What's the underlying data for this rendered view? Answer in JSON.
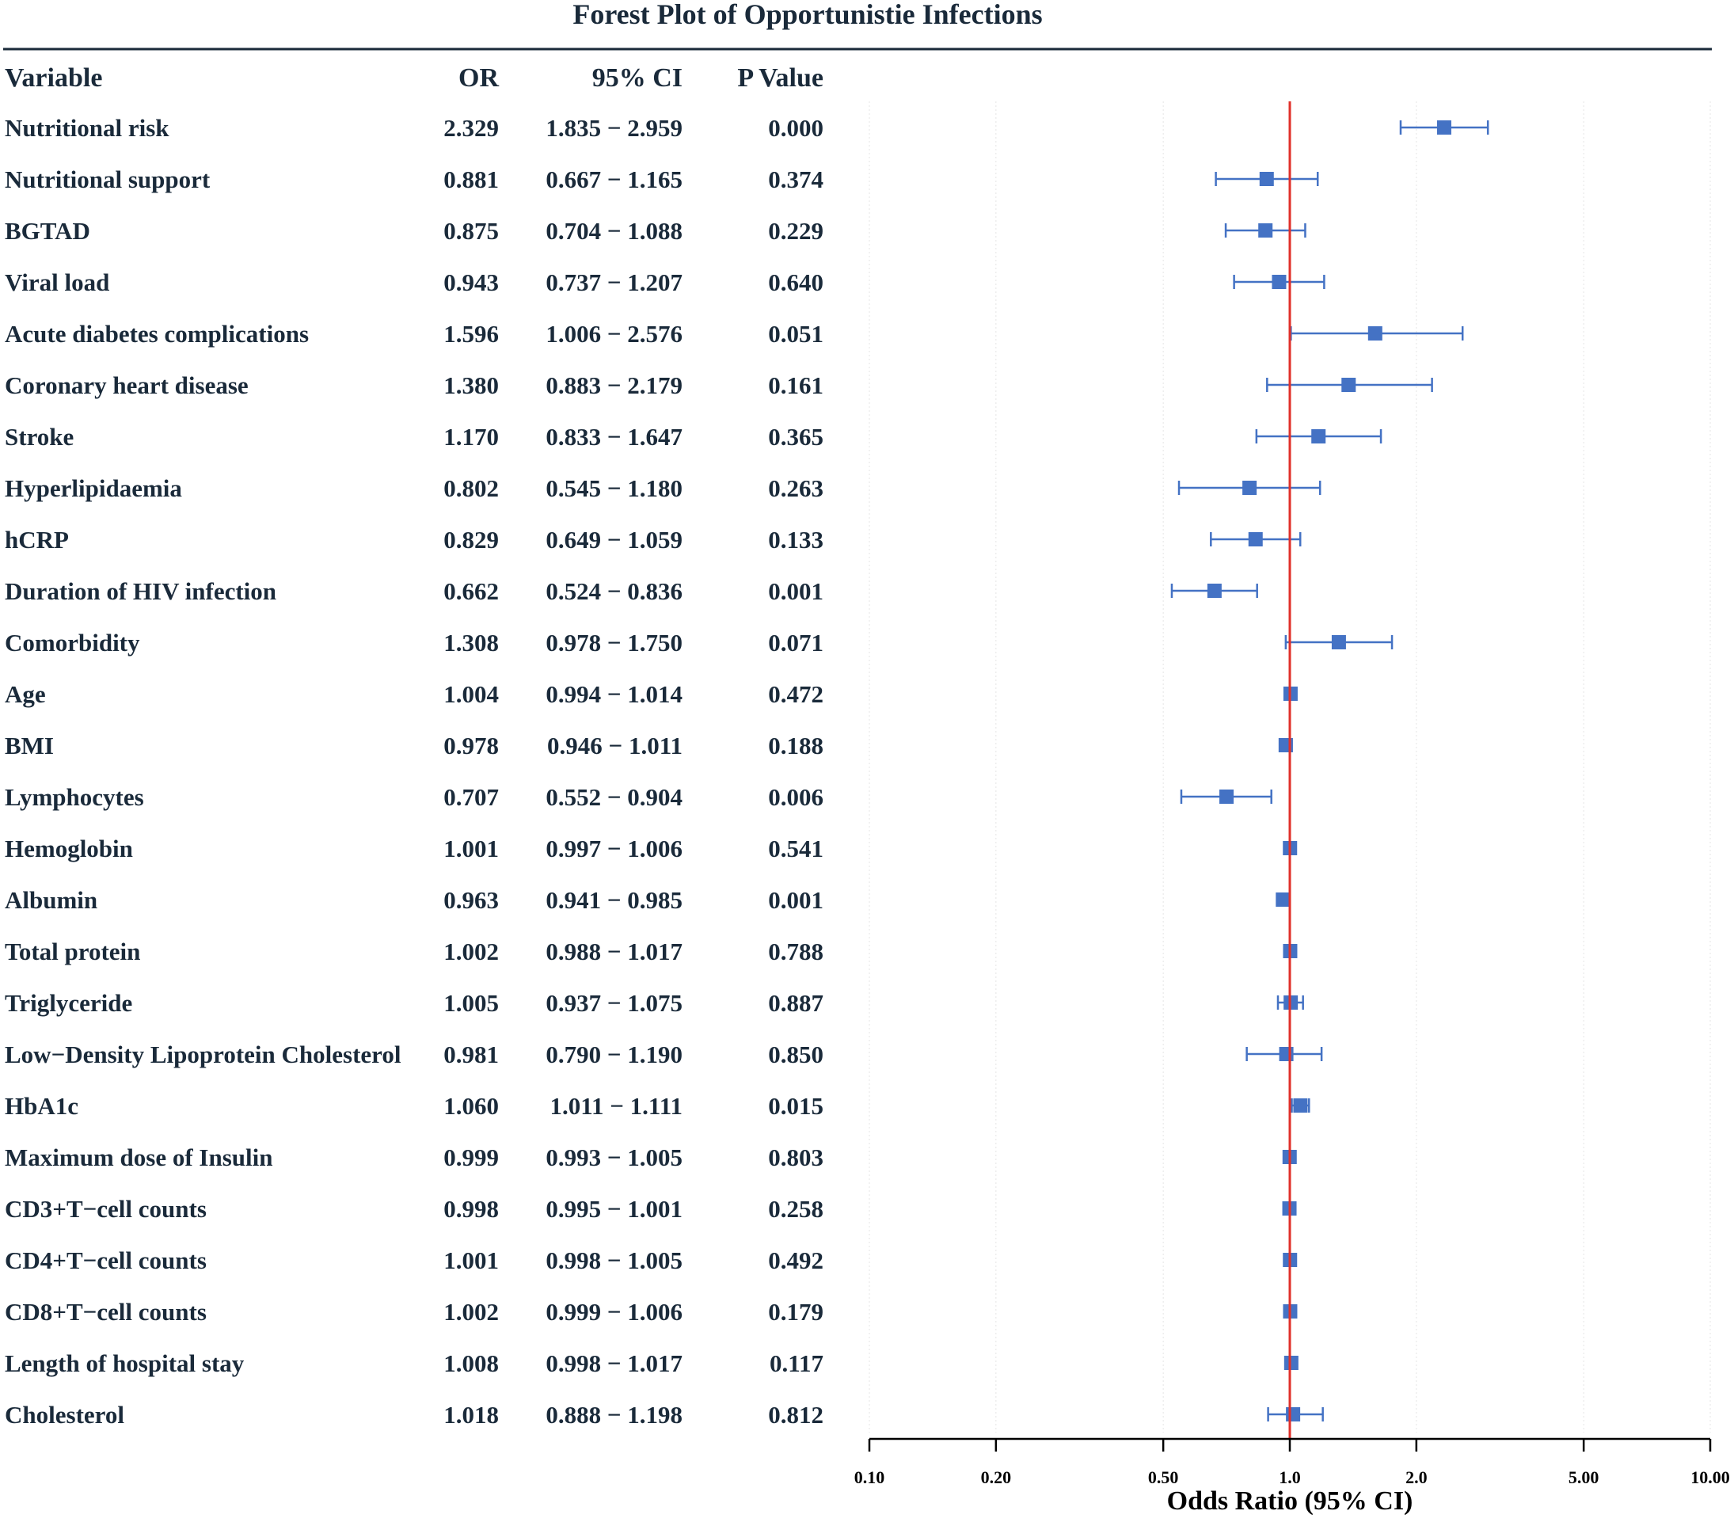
{
  "chart_data": {
    "type": "forest",
    "title": "Forest Plot of Opportunistie Infections",
    "columns": {
      "variable": "Variable",
      "or": "OR",
      "ci": "95% CI",
      "p": "P Value"
    },
    "xlabel": "Odds Ratio (95% CI)",
    "xscale": "log",
    "xlim": [
      0.1,
      10
    ],
    "reference_line": 1.0,
    "x_ticks": [
      {
        "value": 0.1,
        "label": "0.10"
      },
      {
        "value": 0.2,
        "label": "0.20"
      },
      {
        "value": 0.5,
        "label": "0.50"
      },
      {
        "value": 1.0,
        "label": "1.0"
      },
      {
        "value": 2.0,
        "label": "2.0"
      },
      {
        "value": 5.0,
        "label": "5.00"
      },
      {
        "value": 10.0,
        "label": "10.00"
      }
    ],
    "colors": {
      "marker": "#4472c4",
      "reference": "#e0302a",
      "text": "#1a2a3a"
    },
    "rows": [
      {
        "variable": "Nutritional risk",
        "or": 2.329,
        "lower": 1.835,
        "upper": 2.959,
        "or_text": "2.329",
        "ci_text": "1.835 − 2.959",
        "p_text": "0.000"
      },
      {
        "variable": "Nutritional support",
        "or": 0.881,
        "lower": 0.667,
        "upper": 1.165,
        "or_text": "0.881",
        "ci_text": "0.667 − 1.165",
        "p_text": "0.374"
      },
      {
        "variable": "BGTAD",
        "or": 0.875,
        "lower": 0.704,
        "upper": 1.088,
        "or_text": "0.875",
        "ci_text": "0.704 − 1.088",
        "p_text": "0.229"
      },
      {
        "variable": "Viral load",
        "or": 0.943,
        "lower": 0.737,
        "upper": 1.207,
        "or_text": "0.943",
        "ci_text": "0.737 − 1.207",
        "p_text": "0.640"
      },
      {
        "variable": "Acute diabetes complications",
        "or": 1.596,
        "lower": 1.006,
        "upper": 2.576,
        "or_text": "1.596",
        "ci_text": "1.006 − 2.576",
        "p_text": "0.051"
      },
      {
        "variable": "Coronary heart disease",
        "or": 1.38,
        "lower": 0.883,
        "upper": 2.179,
        "or_text": "1.380",
        "ci_text": "0.883 − 2.179",
        "p_text": "0.161"
      },
      {
        "variable": "Stroke",
        "or": 1.17,
        "lower": 0.833,
        "upper": 1.647,
        "or_text": "1.170",
        "ci_text": "0.833 − 1.647",
        "p_text": "0.365"
      },
      {
        "variable": "Hyperlipidaemia",
        "or": 0.802,
        "lower": 0.545,
        "upper": 1.18,
        "or_text": "0.802",
        "ci_text": "0.545 − 1.180",
        "p_text": "0.263"
      },
      {
        "variable": "hCRP",
        "or": 0.829,
        "lower": 0.649,
        "upper": 1.059,
        "or_text": "0.829",
        "ci_text": "0.649 − 1.059",
        "p_text": "0.133"
      },
      {
        "variable": "Duration of HIV infection",
        "or": 0.662,
        "lower": 0.524,
        "upper": 0.836,
        "or_text": "0.662",
        "ci_text": "0.524 − 0.836",
        "p_text": "0.001"
      },
      {
        "variable": "Comorbidity",
        "or": 1.308,
        "lower": 0.978,
        "upper": 1.75,
        "or_text": "1.308",
        "ci_text": "0.978 − 1.750",
        "p_text": "0.071"
      },
      {
        "variable": "Age",
        "or": 1.004,
        "lower": 0.994,
        "upper": 1.014,
        "or_text": "1.004",
        "ci_text": "0.994 − 1.014",
        "p_text": "0.472"
      },
      {
        "variable": "BMI",
        "or": 0.978,
        "lower": 0.946,
        "upper": 1.011,
        "or_text": "0.978",
        "ci_text": "0.946 − 1.011",
        "p_text": "0.188"
      },
      {
        "variable": "Lymphocytes",
        "or": 0.707,
        "lower": 0.552,
        "upper": 0.904,
        "or_text": "0.707",
        "ci_text": "0.552 − 0.904",
        "p_text": "0.006"
      },
      {
        "variable": "Hemoglobin",
        "or": 1.001,
        "lower": 0.997,
        "upper": 1.006,
        "or_text": "1.001",
        "ci_text": "0.997 − 1.006",
        "p_text": "0.541"
      },
      {
        "variable": "Albumin",
        "or": 0.963,
        "lower": 0.941,
        "upper": 0.985,
        "or_text": "0.963",
        "ci_text": "0.941 − 0.985",
        "p_text": "0.001"
      },
      {
        "variable": "Total protein",
        "or": 1.002,
        "lower": 0.988,
        "upper": 1.017,
        "or_text": "1.002",
        "ci_text": "0.988 − 1.017",
        "p_text": "0.788"
      },
      {
        "variable": "Triglyceride",
        "or": 1.005,
        "lower": 0.937,
        "upper": 1.075,
        "or_text": "1.005",
        "ci_text": "0.937 − 1.075",
        "p_text": "0.887"
      },
      {
        "variable": "Low−Density Lipoprotein Cholesterol",
        "or": 0.981,
        "lower": 0.79,
        "upper": 1.19,
        "or_text": "0.981",
        "ci_text": "0.790 − 1.190",
        "p_text": "0.850"
      },
      {
        "variable": "HbA1c",
        "or": 1.06,
        "lower": 1.011,
        "upper": 1.111,
        "or_text": "1.060",
        "ci_text": "1.011 − 1.111",
        "p_text": "0.015"
      },
      {
        "variable": "Maximum dose of Insulin",
        "or": 0.999,
        "lower": 0.993,
        "upper": 1.005,
        "or_text": "0.999",
        "ci_text": "0.993 − 1.005",
        "p_text": "0.803"
      },
      {
        "variable": "CD3+T−cell counts",
        "or": 0.998,
        "lower": 0.995,
        "upper": 1.001,
        "or_text": "0.998",
        "ci_text": "0.995 − 1.001",
        "p_text": "0.258"
      },
      {
        "variable": "CD4+T−cell counts",
        "or": 1.001,
        "lower": 0.998,
        "upper": 1.005,
        "or_text": "1.001",
        "ci_text": "0.998 − 1.005",
        "p_text": "0.492"
      },
      {
        "variable": "CD8+T−cell counts",
        "or": 1.002,
        "lower": 0.999,
        "upper": 1.006,
        "or_text": "1.002",
        "ci_text": "0.999 − 1.006",
        "p_text": "0.179"
      },
      {
        "variable": "Length of hospital stay",
        "or": 1.008,
        "lower": 0.998,
        "upper": 1.017,
        "or_text": "1.008",
        "ci_text": "0.998 − 1.017",
        "p_text": "0.117"
      },
      {
        "variable": "Cholesterol",
        "or": 1.018,
        "lower": 0.888,
        "upper": 1.198,
        "or_text": "1.018",
        "ci_text": "0.888 − 1.198",
        "p_text": "0.812"
      }
    ]
  }
}
